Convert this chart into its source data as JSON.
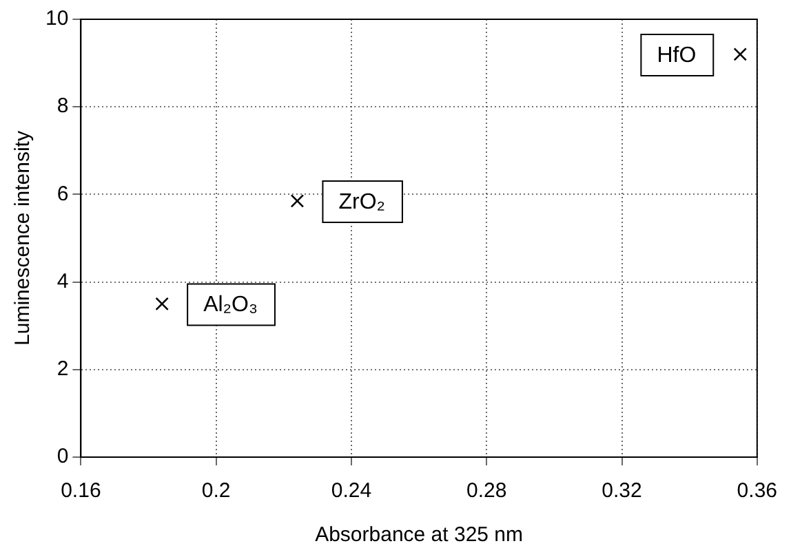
{
  "chart_data": {
    "type": "scatter",
    "xlabel": "Absorbance at 325 nm",
    "ylabel": "Luminescence intensity",
    "x": [
      0.184,
      0.224,
      0.355
    ],
    "values": [
      3.5,
      5.85,
      9.2
    ],
    "color": "#000000",
    "marker": "cross",
    "xlim": [
      0.16,
      0.36
    ],
    "xticks": [
      0.16,
      0.2,
      0.24,
      0.28,
      0.32,
      0.36
    ],
    "ylim": [
      0,
      10
    ],
    "yticks": [
      0,
      2,
      4,
      6,
      8,
      10
    ],
    "grid": true,
    "legend": false,
    "annotations": [
      {
        "text": "Al₂O₃",
        "x": 0.184,
        "y": 3.5
      },
      {
        "text": "ZrO₂",
        "x": 0.224,
        "y": 5.85
      },
      {
        "text": "HfO",
        "x": 0.355,
        "y": 9.2
      }
    ]
  }
}
